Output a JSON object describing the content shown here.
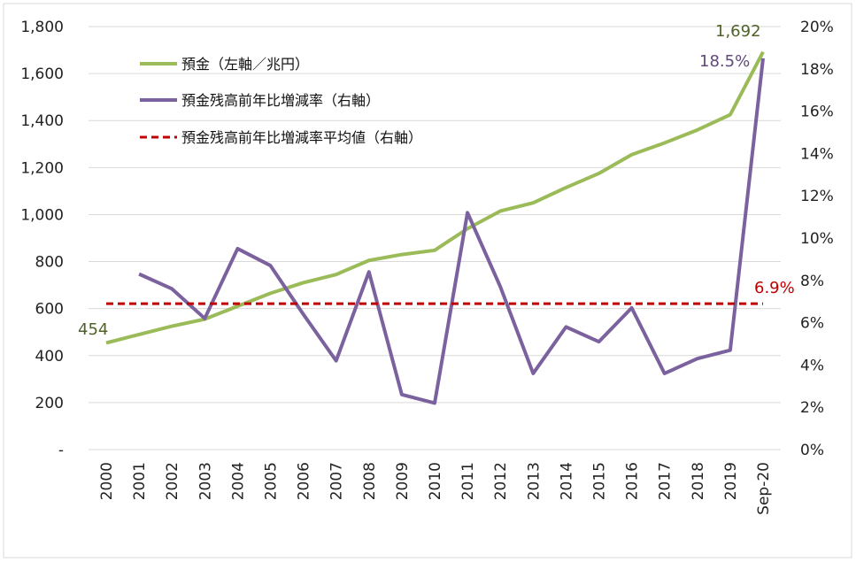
{
  "chart_data": {
    "type": "line",
    "categories": [
      "2000",
      "2001",
      "2002",
      "2003",
      "2004",
      "2005",
      "2006",
      "2007",
      "2008",
      "2009",
      "2010",
      "2011",
      "2012",
      "2013",
      "2014",
      "2015",
      "2016",
      "2017",
      "2018",
      "2019",
      "Sep-20"
    ],
    "left_axis": {
      "ylim": [
        0,
        1800
      ],
      "ticks": [
        "-",
        "200",
        "400",
        "600",
        "800",
        "1,000",
        "1,200",
        "1,400",
        "1,600",
        "1,800"
      ]
    },
    "right_axis": {
      "ylim": [
        0,
        20
      ],
      "ticks": [
        "0%",
        "2%",
        "4%",
        "6%",
        "8%",
        "10%",
        "12%",
        "14%",
        "16%",
        "18%",
        "20%"
      ]
    },
    "grid": true,
    "legend_position": "top-left",
    "series": [
      {
        "name": "預金（左軸／兆円）",
        "axis": "left",
        "color": "#9BBB59",
        "values": [
          454,
          490,
          525,
          555,
          610,
          665,
          710,
          745,
          805,
          830,
          848,
          940,
          1015,
          1050,
          1115,
          1175,
          1255,
          1305,
          1360,
          1425,
          1692
        ]
      },
      {
        "name": "預金残高前年比増減率（右軸）",
        "axis": "right",
        "color": "#7B629E",
        "values": [
          null,
          8.3,
          7.6,
          6.2,
          9.5,
          8.7,
          6.4,
          4.2,
          8.4,
          2.6,
          2.2,
          11.2,
          7.7,
          3.6,
          5.8,
          5.1,
          6.7,
          3.6,
          4.3,
          4.7,
          18.5
        ]
      },
      {
        "name": "預金残高前年比増減率平均値（右軸）",
        "axis": "right",
        "color": "#C00000",
        "style": "dashed",
        "values": [
          6.9,
          6.9,
          6.9,
          6.9,
          6.9,
          6.9,
          6.9,
          6.9,
          6.9,
          6.9,
          6.9,
          6.9,
          6.9,
          6.9,
          6.9,
          6.9,
          6.9,
          6.9,
          6.9,
          6.9,
          6.9
        ]
      }
    ],
    "annotations": {
      "first_deposit": "454",
      "last_deposit": "1,692",
      "last_rate": "18.5%",
      "average": "6.9%"
    }
  }
}
